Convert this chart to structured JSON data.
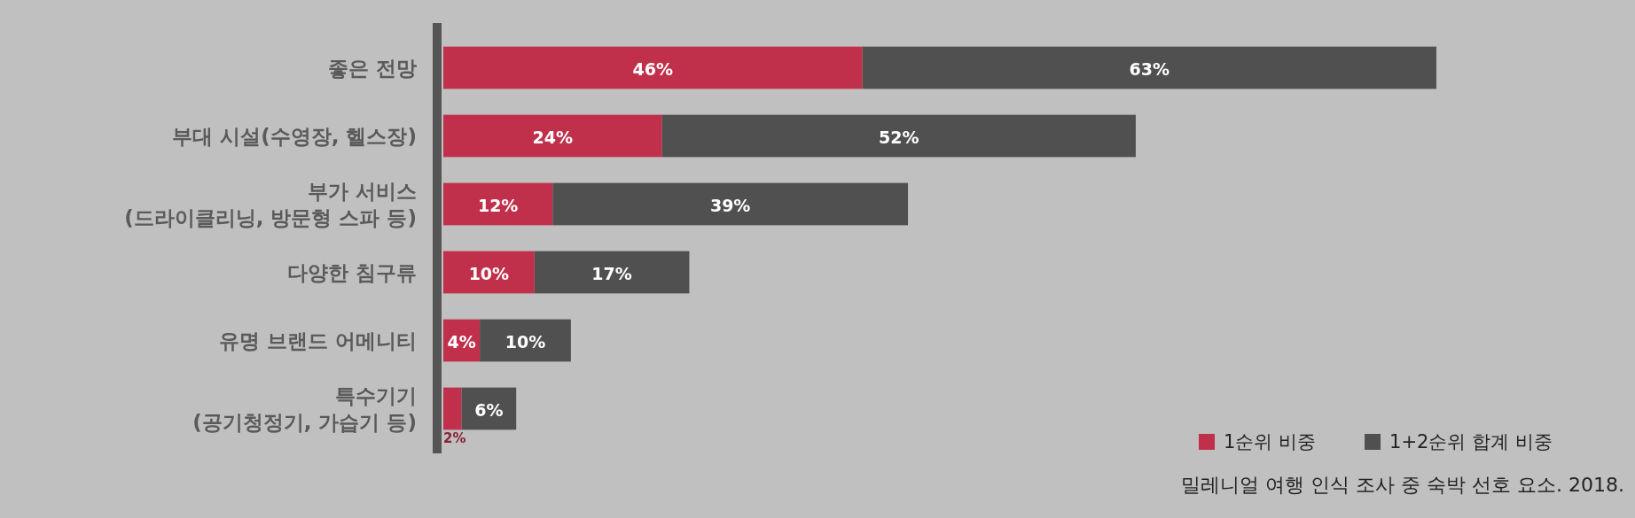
{
  "chart_data": {
    "type": "bar",
    "orientation": "horizontal",
    "stacked": true,
    "legend": "bottom right",
    "categories": [
      "좋은 전망",
      "부대 시설(수영장, 헬스장)",
      "부가 서비스\n(드라이클리닝, 방문형 스파 등)",
      "다양한 침구류",
      "유명 브랜드 어메니티",
      "특수기기\n(공기청정기, 가습기 등)"
    ],
    "series": [
      {
        "name": "1순위 비중",
        "color": "#c1304b",
        "values": [
          46,
          24,
          12,
          10,
          4,
          2
        ],
        "value_labels": [
          "46%",
          "24%",
          "12%",
          "10%",
          "4%",
          "2%"
        ]
      },
      {
        "name": "1+2순위 합계 비중",
        "color": "#505050",
        "values": [
          63,
          52,
          39,
          17,
          10,
          6
        ],
        "value_labels": [
          "63%",
          "52%",
          "39%",
          "17%",
          "10%",
          "6%"
        ]
      }
    ],
    "annotations": [
      "밀레니얼 여행 인식 조사 중 숙박 선호 요소. 2018."
    ]
  }
}
